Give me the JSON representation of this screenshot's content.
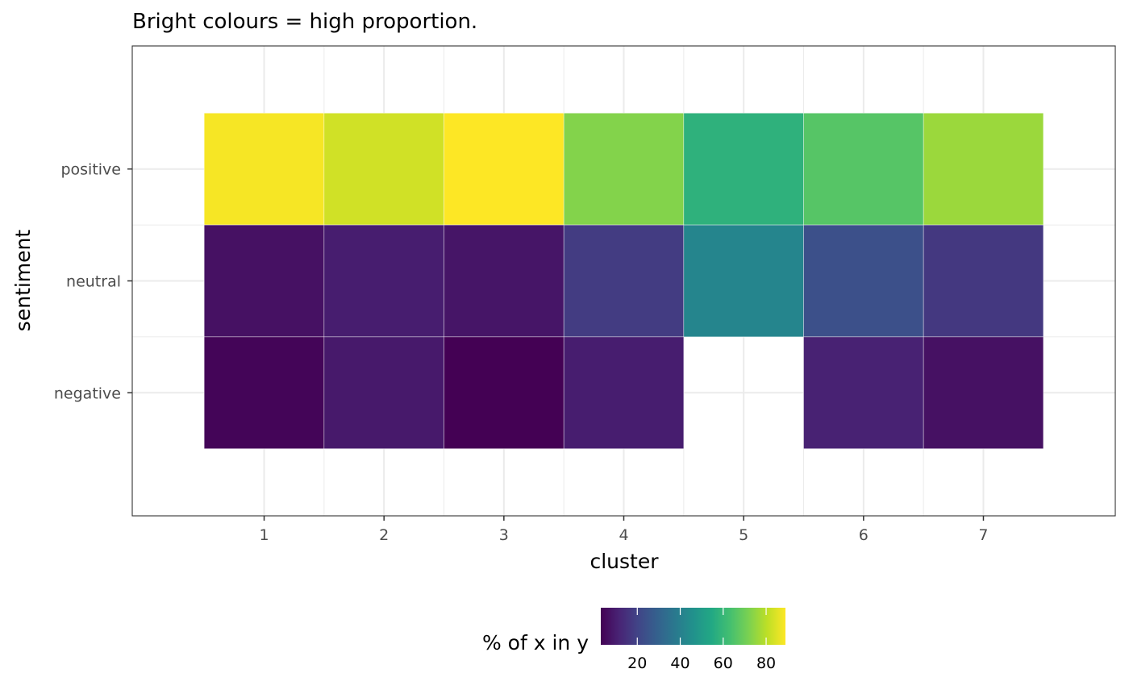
{
  "chart_data": {
    "type": "heatmap",
    "title": "Bright colours = high proportion.",
    "xlabel": "cluster",
    "ylabel": "sentiment",
    "x_categories": [
      "1",
      "2",
      "3",
      "4",
      "5",
      "6",
      "7"
    ],
    "y_categories": [
      "negative",
      "neutral",
      "positive"
    ],
    "cells": [
      {
        "x": "1",
        "y": "positive",
        "value": 88
      },
      {
        "x": "2",
        "y": "positive",
        "value": 83
      },
      {
        "x": "3",
        "y": "positive",
        "value": 89
      },
      {
        "x": "4",
        "y": "positive",
        "value": 73
      },
      {
        "x": "5",
        "y": "positive",
        "value": 58
      },
      {
        "x": "6",
        "y": "positive",
        "value": 66
      },
      {
        "x": "7",
        "y": "positive",
        "value": 76
      },
      {
        "x": "1",
        "y": "neutral",
        "value": 7
      },
      {
        "x": "2",
        "y": "neutral",
        "value": 10
      },
      {
        "x": "3",
        "y": "neutral",
        "value": 8
      },
      {
        "x": "4",
        "y": "neutral",
        "value": 18
      },
      {
        "x": "5",
        "y": "neutral",
        "value": 42
      },
      {
        "x": "6",
        "y": "neutral",
        "value": 24
      },
      {
        "x": "7",
        "y": "neutral",
        "value": 17
      },
      {
        "x": "1",
        "y": "negative",
        "value": 4
      },
      {
        "x": "2",
        "y": "negative",
        "value": 9
      },
      {
        "x": "3",
        "y": "negative",
        "value": 3
      },
      {
        "x": "4",
        "y": "negative",
        "value": 10
      },
      {
        "x": "6",
        "y": "negative",
        "value": 11
      },
      {
        "x": "7",
        "y": "negative",
        "value": 7
      }
    ],
    "legend": {
      "title": "% of x in y",
      "placement": "bottom",
      "ticks": [
        20,
        40,
        60,
        80
      ],
      "range": [
        3,
        89
      ]
    },
    "colormap": "viridis",
    "grid": true
  }
}
